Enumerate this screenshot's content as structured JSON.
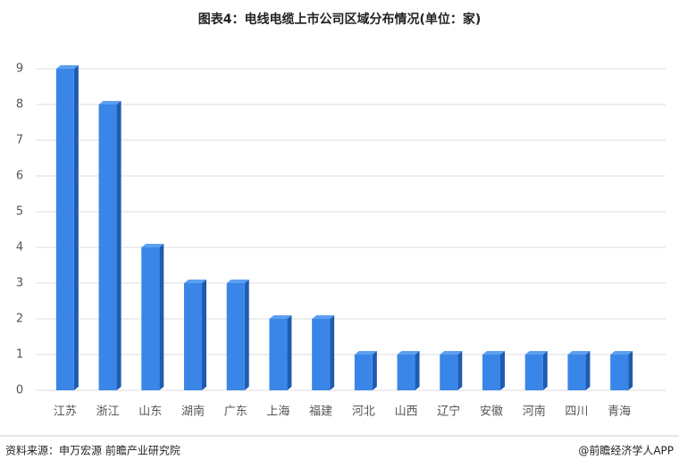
{
  "chart_data": {
    "type": "bar",
    "title": "图表4：电线电缆上市公司区域分布情况(单位：家)",
    "categories": [
      "江苏",
      "浙江",
      "山东",
      "湖南",
      "广东",
      "上海",
      "福建",
      "河北",
      "山西",
      "辽宁",
      "安徽",
      "河南",
      "四川",
      "青海"
    ],
    "values": [
      9,
      8,
      4,
      3,
      3,
      2,
      2,
      1,
      1,
      1,
      1,
      1,
      1,
      1
    ],
    "color": "#3a86e8",
    "ylim": [
      0,
      9
    ],
    "yticks": [
      0,
      1,
      2,
      3,
      4,
      5,
      6,
      7,
      8,
      9
    ],
    "grid": true,
    "source": "资料来源：申万宏源 前瞻产业研究院",
    "credit": "@前瞻经济学人APP"
  }
}
